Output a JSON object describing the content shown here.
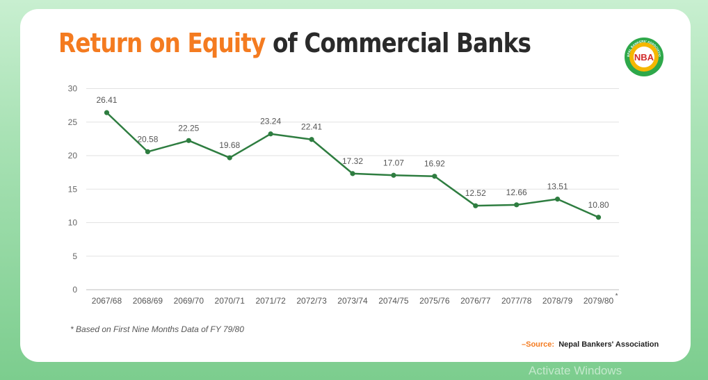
{
  "title": {
    "highlight": "Return on Equity",
    "rest": " of Commercial Banks"
  },
  "logo": {
    "text": "NBA",
    "ring_text": "NEPAL BANKERS' ASSOCIATION"
  },
  "colors": {
    "line": "#2e7d40",
    "accent": "#f47b20",
    "grid": "#e2e2e2"
  },
  "chart_data": {
    "type": "line",
    "categories": [
      "2067/68",
      "2068/69",
      "2069/70",
      "2070/71",
      "2071/72",
      "2072/73",
      "2073/74",
      "2074/75",
      "2075/76",
      "2076/77",
      "2077/78",
      "2078/79",
      "2079/80"
    ],
    "series": [
      {
        "name": "Return on Equity",
        "values": [
          26.41,
          20.58,
          22.25,
          19.68,
          23.24,
          22.41,
          17.32,
          17.07,
          16.92,
          12.52,
          12.66,
          13.51,
          10.8
        ]
      }
    ],
    "data_labels": [
      "26.41",
      "20.58",
      "22.25",
      "19.68",
      "23.24",
      "22.41",
      "17.32",
      "17.07",
      "16.92",
      "12.52",
      "12.66",
      "13.51",
      "10.80"
    ],
    "y_ticks": [
      0,
      5,
      10,
      15,
      20,
      25,
      30
    ],
    "ylim": [
      0,
      30
    ],
    "last_category_marker": "*",
    "title": "Return on Equity of Commercial Banks",
    "xlabel": "",
    "ylabel": ""
  },
  "footnote": "* Based on First Nine Months Data of FY 79/80",
  "source": {
    "label": "–Source:",
    "value": "Nepal Bankers' Association"
  },
  "watermark": "Activate Windows"
}
